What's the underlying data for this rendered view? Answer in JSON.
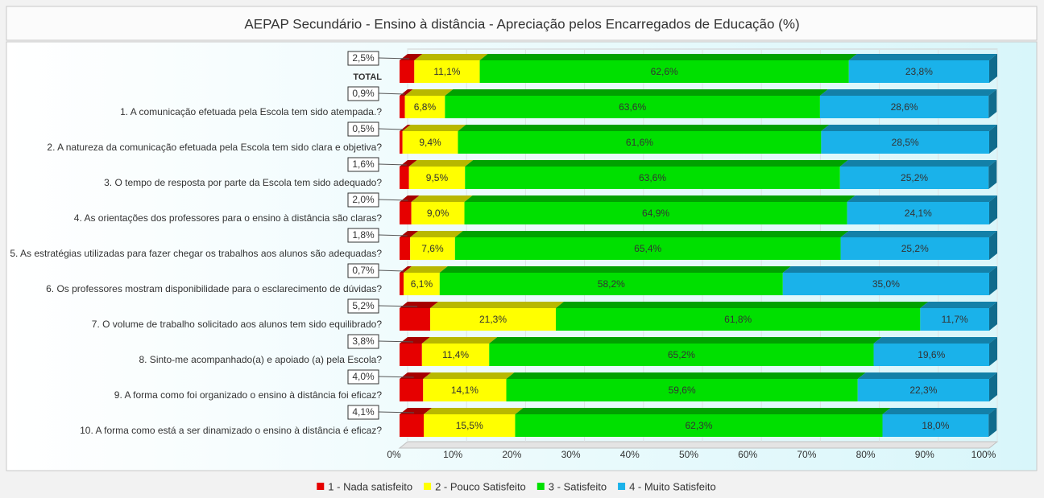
{
  "chart_data": {
    "type": "bar",
    "orientation": "horizontal",
    "stacked": true,
    "title": "AEPAP Secundário - Ensino à distância - Apreciação pelos Encarregados de Educação (%)",
    "categories": [
      "TOTAL",
      "1. A comunicação efetuada pela Escola tem sido atempada.?",
      "2. A natureza da comunicação efetuada pela Escola tem sido clara e objetiva?",
      "3. O tempo de resposta por parte da Escola tem sido adequado?",
      "4. As orientações dos professores para o ensino à distância são claras?",
      "5. As estratégias utilizadas para fazer chegar os trabalhos aos alunos são adequadas?",
      "6. Os professores mostram disponibilidade para o esclarecimento de dúvidas?",
      "7. O volume de trabalho solicitado aos alunos tem sido equilibrado?",
      "8. Sinto-me acompanhado(a) e apoiado (a) pela Escola?",
      "9. A forma como foi organizado o ensino à distância foi eficaz?",
      "10. A forma como está a ser dinamizado o ensino à distância é eficaz?"
    ],
    "series": [
      {
        "name": "1 - Nada satisfeito",
        "color": "#e60000",
        "values": [
          2.5,
          0.9,
          0.5,
          1.6,
          2.0,
          1.8,
          0.7,
          5.2,
          3.8,
          4.0,
          4.1
        ],
        "value_labels": [
          "2,5%",
          "0,9%",
          "0,5%",
          "1,6%",
          "2,0%",
          "1,8%",
          "0,7%",
          "5,2%",
          "3,8%",
          "4,0%",
          "4,1%"
        ]
      },
      {
        "name": "2 - Pouco Satisfeito",
        "color": "#ffff00",
        "values": [
          11.1,
          6.8,
          9.4,
          9.5,
          9.0,
          7.6,
          6.1,
          21.3,
          11.4,
          14.1,
          15.5
        ],
        "value_labels": [
          "11,1%",
          "6,8%",
          "9,4%",
          "9,5%",
          "9,0%",
          "7,6%",
          "6,1%",
          "21,3%",
          "11,4%",
          "14,1%",
          "15,5%"
        ]
      },
      {
        "name": "3 - Satisfeito",
        "color": "#00e000",
        "values": [
          62.6,
          63.6,
          61.6,
          63.6,
          64.9,
          65.4,
          58.2,
          61.8,
          65.2,
          59.6,
          62.3
        ],
        "value_labels": [
          "62,6%",
          "63,6%",
          "61,6%",
          "63,6%",
          "64,9%",
          "65,4%",
          "58,2%",
          "61,8%",
          "65,2%",
          "59,6%",
          "62,3%"
        ]
      },
      {
        "name": "4 - Muito Satisfeito",
        "color": "#1ab2ea",
        "values": [
          23.8,
          28.6,
          28.5,
          25.2,
          24.1,
          25.2,
          35.0,
          11.7,
          19.6,
          22.3,
          18.0
        ],
        "value_labels": [
          "23,8%",
          "28,6%",
          "28,5%",
          "25,2%",
          "24,1%",
          "25,2%",
          "35,0%",
          "11,7%",
          "19,6%",
          "22,3%",
          "18,0%"
        ]
      }
    ],
    "xlim": [
      0,
      100
    ],
    "xticks": [
      {
        "value": 0,
        "label": "0%"
      },
      {
        "value": 10,
        "label": "10%"
      },
      {
        "value": 20,
        "label": "20%"
      },
      {
        "value": 30,
        "label": "30%"
      },
      {
        "value": 40,
        "label": "40%"
      },
      {
        "value": 50,
        "label": "50%"
      },
      {
        "value": 60,
        "label": "60%"
      },
      {
        "value": 70,
        "label": "70%"
      },
      {
        "value": 80,
        "label": "80%"
      },
      {
        "value": 90,
        "label": "90%"
      },
      {
        "value": 100,
        "label": "100%"
      }
    ],
    "grid": true,
    "legend": "bottom"
  }
}
